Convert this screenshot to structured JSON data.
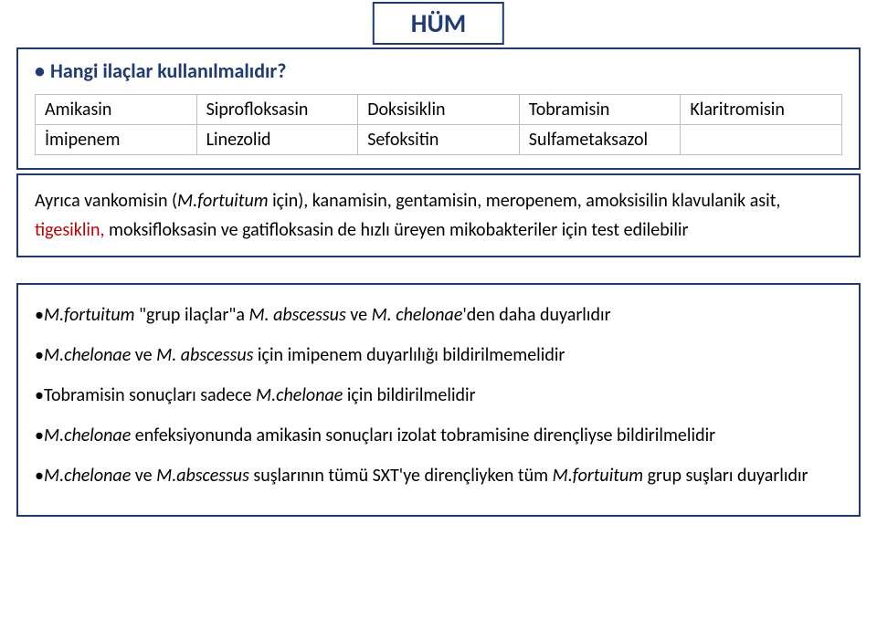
{
  "title": "HÜM",
  "box1": {
    "heading": "Hangi ilaçlar kullanılmalıdır?",
    "rows": [
      [
        "Amikasin",
        "Siprofloksasin",
        "Doksisiklin",
        "Tobramisin",
        "Klaritromisin"
      ],
      [
        "İmipenem",
        "Linezolid",
        "Sefoksitin",
        "Sulfametaksazol",
        ""
      ]
    ]
  },
  "box2": {
    "t1": "Ayrıca vankomisin (",
    "t2": "M.fortuitum",
    "t3": " için), kanamisin, gentamisin, meropenem, amoksisilin klavulanik asit, ",
    "t4": "tigesiklin,",
    "t5": " moksifloksasin ve gatifloksasin de hızlı üreyen mikobakteriler için test edilebilir"
  },
  "box3": {
    "l1a": "M.fortuitum",
    "l1b": " \"grup ilaçlar\"a ",
    "l1c": "M. abscessus ",
    "l1d": "ve ",
    "l1e": "M. chelonae",
    "l1f": "'den daha duyarlıdır",
    "l2a": "M.chelonae",
    "l2b": " ve ",
    "l2c": "M. abscessus ",
    "l2d": "için imipenem duyarlılığı bildirilmemelidir",
    "l3a": "Tobramisin sonuçları sadece ",
    "l3b": "M.chelonae ",
    "l3c": "için bildirilmelidir",
    "l4a": "M.chelonae ",
    "l4b": "enfeksiyonunda amikasin sonuçları izolat tobramisine dirençliyse bildirilmelidir",
    "l5a": "M.chelonae",
    "l5b": " ve ",
    "l5c": "M.abscessus",
    "l5d": " suşlarının tümü SXT'ye dirençliyken tüm ",
    "l5e": "M.fortuitum ",
    "l5f": "grup suşları duyarlıdır"
  }
}
